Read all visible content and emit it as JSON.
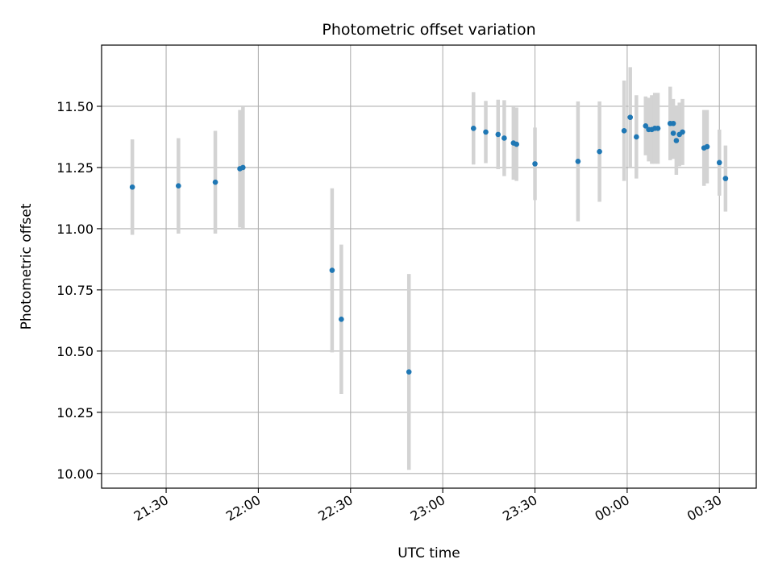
{
  "chart_data": {
    "type": "scatter",
    "title": "Photometric offset variation",
    "xlabel": "UTC time",
    "ylabel": "Photometric offset",
    "x_axis": {
      "kind": "time",
      "range": [
        "21:09",
        "00:42"
      ],
      "ticks": [
        "21:30",
        "22:00",
        "22:30",
        "23:00",
        "23:30",
        "00:00",
        "00:30"
      ]
    },
    "y_axis": {
      "range": [
        9.94,
        11.75
      ],
      "ticks": [
        "10.00",
        "10.25",
        "10.50",
        "10.75",
        "11.00",
        "11.25",
        "11.50"
      ]
    },
    "grid": true,
    "colors": {
      "points": "#1f77b4",
      "errorbars": "#d3d3d3",
      "grid": "#b0b0b0"
    },
    "points": [
      {
        "t": "21:19",
        "y": 11.17,
        "err": 0.195
      },
      {
        "t": "21:34",
        "y": 11.175,
        "err": 0.195
      },
      {
        "t": "21:46",
        "y": 11.19,
        "err": 0.21
      },
      {
        "t": "21:54",
        "y": 11.245,
        "err": 0.24
      },
      {
        "t": "21:55",
        "y": 11.25,
        "err": 0.25
      },
      {
        "t": "22:24",
        "y": 10.83,
        "err": 0.335
      },
      {
        "t": "22:27",
        "y": 10.63,
        "err": 0.305
      },
      {
        "t": "22:49",
        "y": 10.415,
        "err": 0.4
      },
      {
        "t": "23:10",
        "y": 11.41,
        "err": 0.148
      },
      {
        "t": "23:14",
        "y": 11.395,
        "err": 0.127
      },
      {
        "t": "23:18",
        "y": 11.385,
        "err": 0.142
      },
      {
        "t": "23:20",
        "y": 11.37,
        "err": 0.155
      },
      {
        "t": "23:23",
        "y": 11.35,
        "err": 0.15
      },
      {
        "t": "23:24",
        "y": 11.345,
        "err": 0.15
      },
      {
        "t": "23:30",
        "y": 11.265,
        "err": 0.148
      },
      {
        "t": "23:44",
        "y": 11.275,
        "err": 0.245
      },
      {
        "t": "23:51",
        "y": 11.315,
        "err": 0.205
      },
      {
        "t": "23:59",
        "y": 11.4,
        "err": 0.205
      },
      {
        "t": "00:01",
        "y": 11.455,
        "err": 0.205
      },
      {
        "t": "00:03",
        "y": 11.375,
        "err": 0.17
      },
      {
        "t": "00:06",
        "y": 11.42,
        "err": 0.12
      },
      {
        "t": "00:07",
        "y": 11.405,
        "err": 0.13
      },
      {
        "t": "00:08",
        "y": 11.405,
        "err": 0.14
      },
      {
        "t": "00:09",
        "y": 11.41,
        "err": 0.145
      },
      {
        "t": "00:10",
        "y": 11.41,
        "err": 0.145
      },
      {
        "t": "00:14",
        "y": 11.43,
        "err": 0.15
      },
      {
        "t": "00:15",
        "y": 11.43,
        "err": 0.1
      },
      {
        "t": "00:15",
        "y": 11.39,
        "err": 0.105
      },
      {
        "t": "00:16",
        "y": 11.36,
        "err": 0.14
      },
      {
        "t": "00:17",
        "y": 11.385,
        "err": 0.13
      },
      {
        "t": "00:18",
        "y": 11.395,
        "err": 0.135
      },
      {
        "t": "00:25",
        "y": 11.33,
        "err": 0.155
      },
      {
        "t": "00:26",
        "y": 11.335,
        "err": 0.15
      },
      {
        "t": "00:30",
        "y": 11.27,
        "err": 0.135
      },
      {
        "t": "00:32",
        "y": 11.205,
        "err": 0.135
      }
    ]
  }
}
